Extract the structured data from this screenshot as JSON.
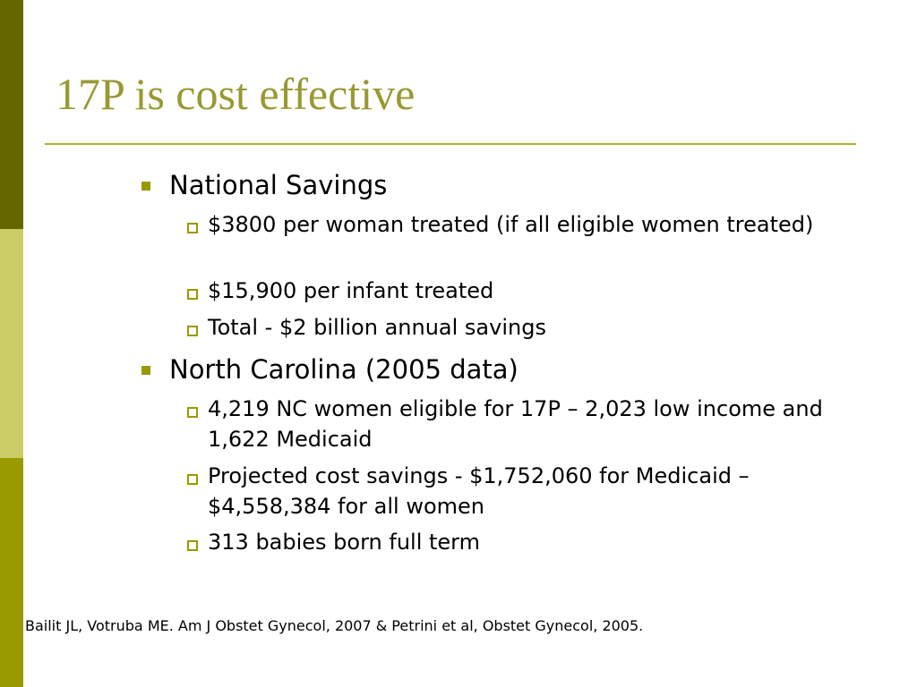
{
  "slide": {
    "title": "17P is cost effective",
    "sections": [
      {
        "heading": "National Savings",
        "items": [
          "$3800 per woman treated (if all eligible women treated)",
          "$15,900 per infant treated",
          "Total - $2 billion annual savings"
        ]
      },
      {
        "heading": "North Carolina (2005 data)",
        "items": [
          "4,219 NC women eligible for 17P – 2,023 low income and 1,622 Medicaid",
          "Projected cost savings - $1,752,060 for Medicaid – $4,558,384 for all women",
          "313 babies born full term"
        ]
      }
    ],
    "citation": "Bailit JL, Votruba ME. Am J Obstet Gynecol, 2007 & Petrini et al, Obstet Gynecol, 2005."
  },
  "colors": {
    "title": "#999933",
    "bar_dark": "#666600",
    "bar_light": "#cccc66",
    "bar_mid": "#999900",
    "bullet": "#999900"
  }
}
